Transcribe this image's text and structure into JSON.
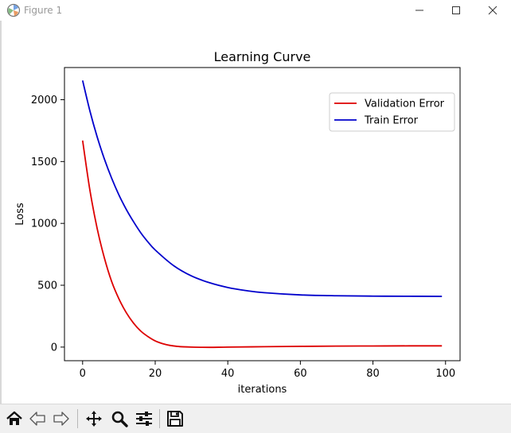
{
  "window": {
    "title": "Figure 1",
    "icon": "matplotlib-icon",
    "controls": [
      "minimize-icon",
      "maximize-icon",
      "close-icon"
    ]
  },
  "toolbar": {
    "buttons": [
      "home-icon",
      "back-icon",
      "forward-icon",
      "pan-icon",
      "zoom-icon",
      "configure-subplots-icon",
      "save-icon"
    ]
  },
  "colors": {
    "validation": "#dd0000",
    "train": "#0000cc",
    "toolbar_bg": "#f0f0f0"
  },
  "chart_data": {
    "type": "line",
    "title": "Learning Curve",
    "xlabel": "iterations",
    "ylabel": "Loss",
    "xlim": [
      -5,
      104
    ],
    "ylim": [
      -110,
      2260
    ],
    "xticks": [
      0,
      20,
      40,
      60,
      80,
      100
    ],
    "yticks": [
      0,
      500,
      1000,
      1500,
      2000
    ],
    "grid": false,
    "legend_position": "upper right",
    "series": [
      {
        "name": "Validation Error",
        "color": "#dd0000",
        "x": [
          0,
          2,
          4,
          6,
          8,
          10,
          12,
          14,
          16,
          18,
          20,
          22,
          24,
          26,
          28,
          30,
          35,
          40,
          50,
          60,
          70,
          80,
          90,
          99
        ],
        "y": [
          1670,
          1270,
          960,
          720,
          530,
          390,
          280,
          195,
          130,
          85,
          50,
          28,
          14,
          6,
          2,
          0,
          -2,
          0,
          3,
          6,
          8,
          9,
          10,
          10
        ]
      },
      {
        "name": "Train Error",
        "color": "#0000cc",
        "x": [
          0,
          2,
          4,
          6,
          8,
          10,
          12,
          14,
          16,
          18,
          20,
          25,
          30,
          35,
          40,
          45,
          50,
          60,
          70,
          80,
          90,
          99
        ],
        "y": [
          2155,
          1910,
          1700,
          1520,
          1365,
          1230,
          1115,
          1015,
          925,
          850,
          785,
          660,
          575,
          520,
          482,
          457,
          440,
          422,
          415,
          412,
          411,
          410
        ]
      }
    ]
  }
}
